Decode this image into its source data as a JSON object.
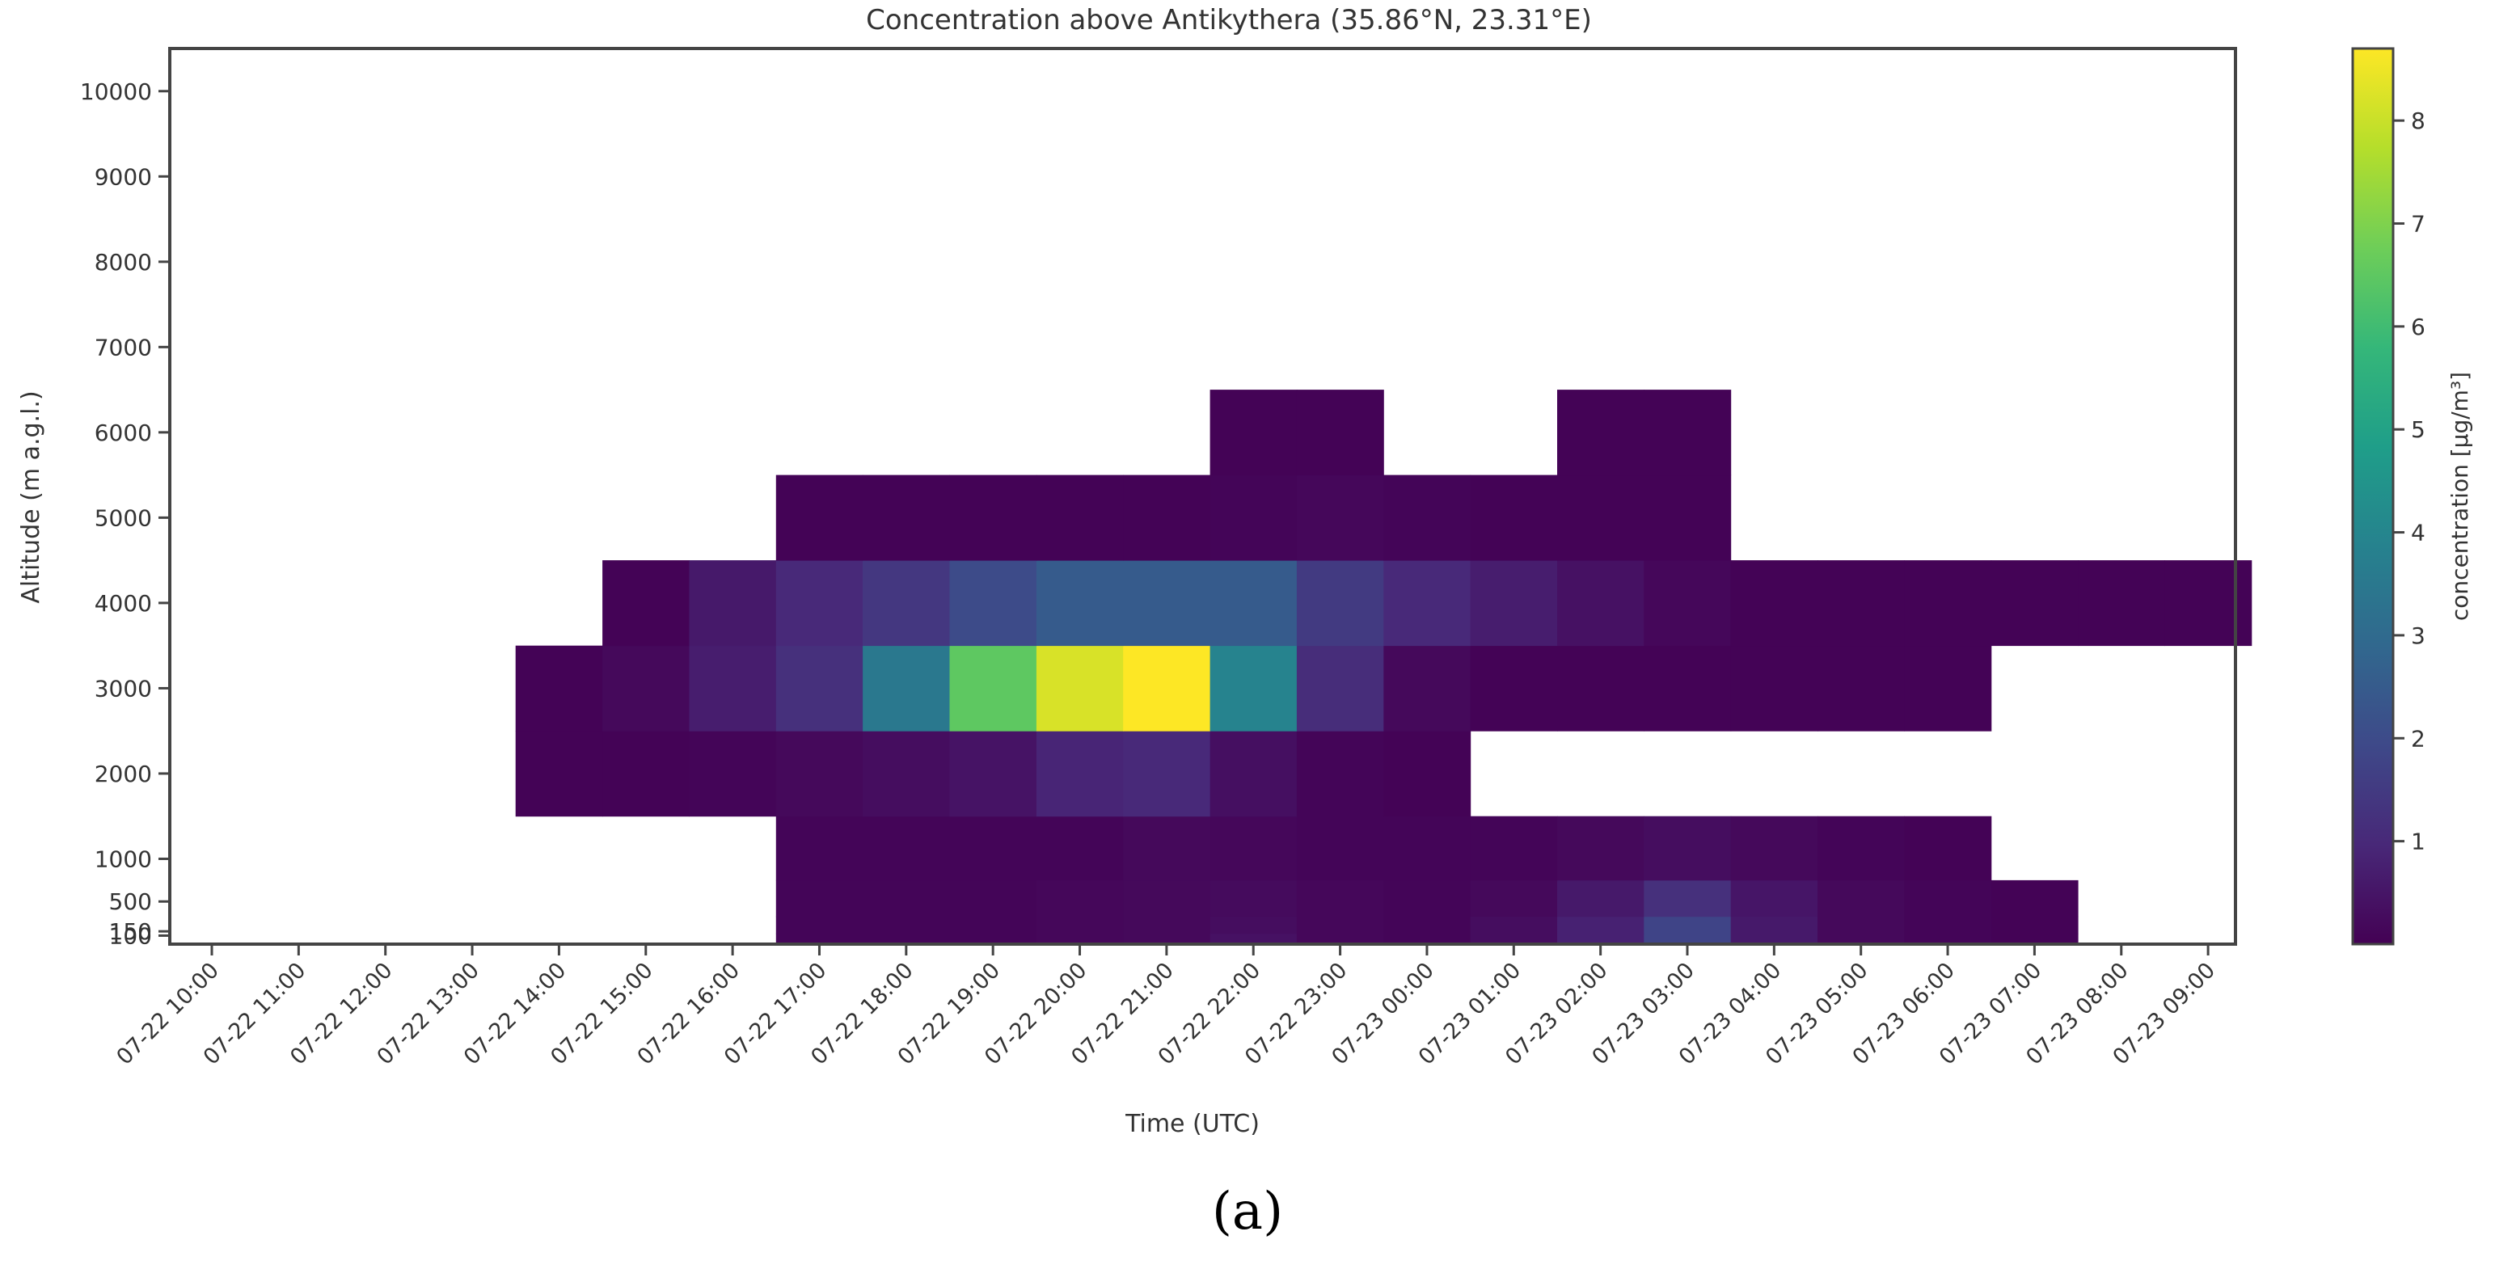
{
  "chart_data": {
    "type": "heatmap",
    "title": "Concentration above Antikythera (35.86°N, 23.31°E)",
    "xlabel": "Time (UTC)",
    "ylabel": "Altitude (m a.g.l.)",
    "x": [
      "07-22 10:00",
      "07-22 11:00",
      "07-22 12:00",
      "07-22 13:00",
      "07-22 14:00",
      "07-22 15:00",
      "07-22 16:00",
      "07-22 17:00",
      "07-22 18:00",
      "07-22 19:00",
      "07-22 20:00",
      "07-22 21:00",
      "07-22 22:00",
      "07-22 23:00",
      "07-23 00:00",
      "07-23 01:00",
      "07-23 02:00",
      "07-23 03:00",
      "07-23 04:00",
      "07-23 05:00",
      "07-23 06:00",
      "07-23 07:00",
      "07-23 08:00",
      "07-23 09:00"
    ],
    "y_ticks": [
      100,
      150,
      500,
      1000,
      2000,
      3000,
      4000,
      5000,
      6000,
      7000,
      8000,
      9000,
      10000
    ],
    "y_tick_labels": [
      "100",
      "150",
      "500",
      "1000",
      "2000",
      "3000",
      "4000",
      "5000",
      "6000",
      "7000",
      "8000",
      "9000",
      "10000"
    ],
    "ylim": [
      0,
      10500
    ],
    "levels": [
      {
        "label": "100",
        "range": [
          0,
          125
        ]
      },
      {
        "label": "150",
        "range": [
          125,
          325
        ]
      },
      {
        "label": "500",
        "range": [
          325,
          750
        ]
      },
      {
        "label": "1000",
        "range": [
          750,
          1500
        ]
      },
      {
        "label": "2000",
        "range": [
          1500,
          2500
        ]
      },
      {
        "label": "3000",
        "range": [
          2500,
          3500
        ]
      },
      {
        "label": "4000",
        "range": [
          3500,
          4500
        ]
      },
      {
        "label": "5000",
        "range": [
          4500,
          5500
        ]
      },
      {
        "label": "6000",
        "range": [
          5500,
          6500
        ]
      }
    ],
    "cells": [
      {
        "x": "07-22 17:00",
        "level": "100",
        "value": 0.1
      },
      {
        "x": "07-22 18:00",
        "level": "100",
        "value": 0.1
      },
      {
        "x": "07-22 19:00",
        "level": "100",
        "value": 0.1
      },
      {
        "x": "07-22 20:00",
        "level": "100",
        "value": 0.15
      },
      {
        "x": "07-22 21:00",
        "level": "100",
        "value": 0.2
      },
      {
        "x": "07-22 22:00",
        "level": "100",
        "value": 0.4
      },
      {
        "x": "07-22 23:00",
        "level": "100",
        "value": 0.15
      },
      {
        "x": "07-23 00:00",
        "level": "100",
        "value": 0.1
      },
      {
        "x": "07-23 01:00",
        "level": "100",
        "value": 0.3
      },
      {
        "x": "07-23 02:00",
        "level": "100",
        "value": 0.8
      },
      {
        "x": "07-23 03:00",
        "level": "100",
        "value": 1.8
      },
      {
        "x": "07-23 04:00",
        "level": "100",
        "value": 0.6
      },
      {
        "x": "07-23 05:00",
        "level": "100",
        "value": 0.2
      },
      {
        "x": "07-23 06:00",
        "level": "100",
        "value": 0.1
      },
      {
        "x": "07-23 07:00",
        "level": "100",
        "value": 0.05
      },
      {
        "x": "07-22 17:00",
        "level": "150",
        "value": 0.1
      },
      {
        "x": "07-22 18:00",
        "level": "150",
        "value": 0.1
      },
      {
        "x": "07-22 19:00",
        "level": "150",
        "value": 0.1
      },
      {
        "x": "07-22 20:00",
        "level": "150",
        "value": 0.15
      },
      {
        "x": "07-22 21:00",
        "level": "150",
        "value": 0.2
      },
      {
        "x": "07-22 22:00",
        "level": "150",
        "value": 0.3
      },
      {
        "x": "07-22 23:00",
        "level": "150",
        "value": 0.15
      },
      {
        "x": "07-23 00:00",
        "level": "150",
        "value": 0.1
      },
      {
        "x": "07-23 01:00",
        "level": "150",
        "value": 0.3
      },
      {
        "x": "07-23 02:00",
        "level": "150",
        "value": 0.8
      },
      {
        "x": "07-23 03:00",
        "level": "150",
        "value": 1.8
      },
      {
        "x": "07-23 04:00",
        "level": "150",
        "value": 0.6
      },
      {
        "x": "07-23 05:00",
        "level": "150",
        "value": 0.2
      },
      {
        "x": "07-23 06:00",
        "level": "150",
        "value": 0.1
      },
      {
        "x": "07-23 07:00",
        "level": "150",
        "value": 0.05
      },
      {
        "x": "07-22 17:00",
        "level": "500",
        "value": 0.1
      },
      {
        "x": "07-22 18:00",
        "level": "500",
        "value": 0.1
      },
      {
        "x": "07-22 19:00",
        "level": "500",
        "value": 0.1
      },
      {
        "x": "07-22 20:00",
        "level": "500",
        "value": 0.15
      },
      {
        "x": "07-22 21:00",
        "level": "500",
        "value": 0.2
      },
      {
        "x": "07-22 22:00",
        "level": "500",
        "value": 0.25
      },
      {
        "x": "07-22 23:00",
        "level": "500",
        "value": 0.15
      },
      {
        "x": "07-23 00:00",
        "level": "500",
        "value": 0.1
      },
      {
        "x": "07-23 01:00",
        "level": "500",
        "value": 0.2
      },
      {
        "x": "07-23 02:00",
        "level": "500",
        "value": 0.6
      },
      {
        "x": "07-23 03:00",
        "level": "500",
        "value": 1.2
      },
      {
        "x": "07-23 04:00",
        "level": "500",
        "value": 0.5
      },
      {
        "x": "07-23 05:00",
        "level": "500",
        "value": 0.2
      },
      {
        "x": "07-23 06:00",
        "level": "500",
        "value": 0.1
      },
      {
        "x": "07-23 07:00",
        "level": "500",
        "value": 0.05
      },
      {
        "x": "07-22 17:00",
        "level": "1000",
        "value": 0.1
      },
      {
        "x": "07-22 18:00",
        "level": "1000",
        "value": 0.1
      },
      {
        "x": "07-22 19:00",
        "level": "1000",
        "value": 0.1
      },
      {
        "x": "07-22 20:00",
        "level": "1000",
        "value": 0.1
      },
      {
        "x": "07-22 21:00",
        "level": "1000",
        "value": 0.2
      },
      {
        "x": "07-22 22:00",
        "level": "1000",
        "value": 0.15
      },
      {
        "x": "07-22 23:00",
        "level": "1000",
        "value": 0.1
      },
      {
        "x": "07-23 00:00",
        "level": "1000",
        "value": 0.1
      },
      {
        "x": "07-23 01:00",
        "level": "1000",
        "value": 0.1
      },
      {
        "x": "07-23 02:00",
        "level": "1000",
        "value": 0.2
      },
      {
        "x": "07-23 03:00",
        "level": "1000",
        "value": 0.3
      },
      {
        "x": "07-23 04:00",
        "level": "1000",
        "value": 0.2
      },
      {
        "x": "07-23 05:00",
        "level": "1000",
        "value": 0.1
      },
      {
        "x": "07-23 06:00",
        "level": "1000",
        "value": 0.05
      },
      {
        "x": "07-22 14:00",
        "level": "2000",
        "value": 0.05
      },
      {
        "x": "07-22 15:00",
        "level": "2000",
        "value": 0.05
      },
      {
        "x": "07-22 16:00",
        "level": "2000",
        "value": 0.1
      },
      {
        "x": "07-22 17:00",
        "level": "2000",
        "value": 0.2
      },
      {
        "x": "07-22 18:00",
        "level": "2000",
        "value": 0.3
      },
      {
        "x": "07-22 19:00",
        "level": "2000",
        "value": 0.45
      },
      {
        "x": "07-22 20:00",
        "level": "2000",
        "value": 0.9
      },
      {
        "x": "07-22 21:00",
        "level": "2000",
        "value": 1.0
      },
      {
        "x": "07-22 22:00",
        "level": "2000",
        "value": 0.35
      },
      {
        "x": "07-22 23:00",
        "level": "2000",
        "value": 0.1
      },
      {
        "x": "07-23 00:00",
        "level": "2000",
        "value": 0.05
      },
      {
        "x": "07-22 14:00",
        "level": "3000",
        "value": 0.05
      },
      {
        "x": "07-22 15:00",
        "level": "3000",
        "value": 0.2
      },
      {
        "x": "07-22 16:00",
        "level": "3000",
        "value": 0.7
      },
      {
        "x": "07-22 17:00",
        "level": "3000",
        "value": 1.2
      },
      {
        "x": "07-22 18:00",
        "level": "3000",
        "value": 3.5
      },
      {
        "x": "07-22 19:00",
        "level": "3000",
        "value": 6.5
      },
      {
        "x": "07-22 20:00",
        "level": "3000",
        "value": 8.2
      },
      {
        "x": "07-22 21:00",
        "level": "3000",
        "value": 8.7
      },
      {
        "x": "07-22 22:00",
        "level": "3000",
        "value": 3.9
      },
      {
        "x": "07-22 23:00",
        "level": "3000",
        "value": 1.1
      },
      {
        "x": "07-23 00:00",
        "level": "3000",
        "value": 0.2
      },
      {
        "x": "07-23 01:00",
        "level": "3000",
        "value": 0.05
      },
      {
        "x": "07-23 02:00",
        "level": "3000",
        "value": 0.05
      },
      {
        "x": "07-23 03:00",
        "level": "3000",
        "value": 0.05
      },
      {
        "x": "07-23 04:00",
        "level": "3000",
        "value": 0.05
      },
      {
        "x": "07-23 05:00",
        "level": "3000",
        "value": 0.05
      },
      {
        "x": "07-23 06:00",
        "level": "3000",
        "value": 0.05
      },
      {
        "x": "07-22 15:00",
        "level": "4000",
        "value": 0.05
      },
      {
        "x": "07-22 16:00",
        "level": "4000",
        "value": 0.6
      },
      {
        "x": "07-22 17:00",
        "level": "4000",
        "value": 1.0
      },
      {
        "x": "07-22 18:00",
        "level": "4000",
        "value": 1.4
      },
      {
        "x": "07-22 19:00",
        "level": "4000",
        "value": 2.0
      },
      {
        "x": "07-22 20:00",
        "level": "4000",
        "value": 2.5
      },
      {
        "x": "07-22 21:00",
        "level": "4000",
        "value": 2.5
      },
      {
        "x": "07-22 22:00",
        "level": "4000",
        "value": 2.5
      },
      {
        "x": "07-22 23:00",
        "level": "4000",
        "value": 1.5
      },
      {
        "x": "07-23 00:00",
        "level": "4000",
        "value": 1.0
      },
      {
        "x": "07-23 01:00",
        "level": "4000",
        "value": 0.7
      },
      {
        "x": "07-23 02:00",
        "level": "4000",
        "value": 0.4
      },
      {
        "x": "07-23 03:00",
        "level": "4000",
        "value": 0.15
      },
      {
        "x": "07-23 04:00",
        "level": "4000",
        "value": 0.05
      },
      {
        "x": "07-23 05:00",
        "level": "4000",
        "value": 0.05
      },
      {
        "x": "07-23 06:00",
        "level": "4000",
        "value": 0.05
      },
      {
        "x": "07-23 07:00",
        "level": "4000",
        "value": 0.05
      },
      {
        "x": "07-23 08:00",
        "level": "4000",
        "value": 0.05
      },
      {
        "x": "07-23 09:00",
        "level": "4000",
        "value": 0.05
      },
      {
        "x": "07-22 17:00",
        "level": "5000",
        "value": 0.05
      },
      {
        "x": "07-22 18:00",
        "level": "5000",
        "value": 0.05
      },
      {
        "x": "07-22 19:00",
        "level": "5000",
        "value": 0.05
      },
      {
        "x": "07-22 20:00",
        "level": "5000",
        "value": 0.05
      },
      {
        "x": "07-22 21:00",
        "level": "5000",
        "value": 0.05
      },
      {
        "x": "07-22 22:00",
        "level": "5000",
        "value": 0.1
      },
      {
        "x": "07-22 23:00",
        "level": "5000",
        "value": 0.15
      },
      {
        "x": "07-23 00:00",
        "level": "5000",
        "value": 0.1
      },
      {
        "x": "07-23 01:00",
        "level": "5000",
        "value": 0.05
      },
      {
        "x": "07-23 02:00",
        "level": "5000",
        "value": 0.05
      },
      {
        "x": "07-23 03:00",
        "level": "5000",
        "value": 0.05
      },
      {
        "x": "07-22 22:00",
        "level": "6000",
        "value": 0.05
      },
      {
        "x": "07-22 23:00",
        "level": "6000",
        "value": 0.05
      },
      {
        "x": "07-23 02:00",
        "level": "6000",
        "value": 0.05
      },
      {
        "x": "07-23 03:00",
        "level": "6000",
        "value": 0.05
      }
    ],
    "colorbar": {
      "label": "concentration [µg/m³]",
      "range": [
        0,
        8.7
      ],
      "ticks": [
        1,
        2,
        3,
        4,
        5,
        6,
        7,
        8
      ],
      "tick_labels": [
        "1",
        "2",
        "3",
        "4",
        "5",
        "6",
        "7",
        "8"
      ],
      "colormap": "viridis"
    },
    "grid": false
  },
  "caption": "(a)"
}
